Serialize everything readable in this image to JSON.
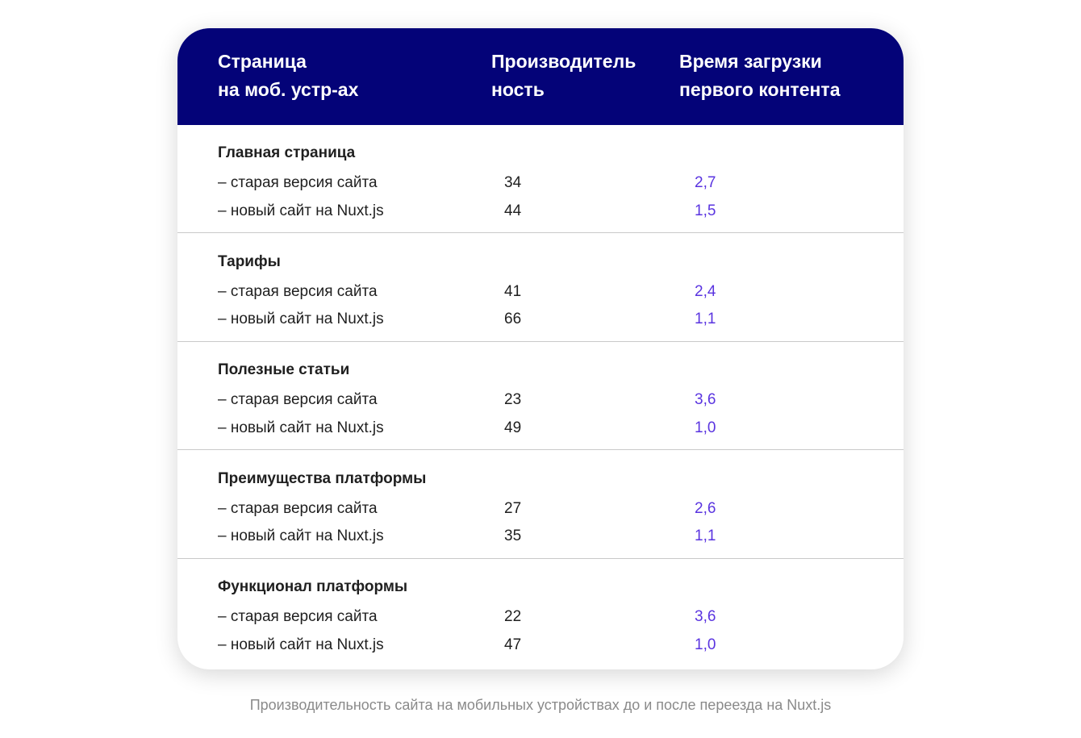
{
  "chart_data": {
    "type": "table",
    "columns": [
      "Страница\nна моб. устр-ах",
      "Производитель\nность",
      "Время загрузки\nпервого контента"
    ],
    "groups": [
      {
        "title": "Главная страница",
        "rows": [
          {
            "label": "– старая версия сайта",
            "performance": "34",
            "fcp": "2,7"
          },
          {
            "label": "– новый сайт на Nuxt.js",
            "performance": "44",
            "fcp": "1,5"
          }
        ]
      },
      {
        "title": "Тарифы",
        "rows": [
          {
            "label": "– старая версия сайта",
            "performance": "41",
            "fcp": "2,4"
          },
          {
            "label": "– новый сайт на Nuxt.js",
            "performance": "66",
            "fcp": "1,1"
          }
        ]
      },
      {
        "title": "Полезные статьи",
        "rows": [
          {
            "label": "– старая версия сайта",
            "performance": "23",
            "fcp": "3,6"
          },
          {
            "label": "– новый сайт на Nuxt.js",
            "performance": "49",
            "fcp": "1,0"
          }
        ]
      },
      {
        "title": "Преимущества платформы",
        "rows": [
          {
            "label": "– старая версия сайта",
            "performance": "27",
            "fcp": "2,6"
          },
          {
            "label": "– новый сайт на Nuxt.js",
            "performance": "35",
            "fcp": "1,1"
          }
        ]
      },
      {
        "title": "Функционал платформы",
        "rows": [
          {
            "label": "– старая версия сайта",
            "performance": "22",
            "fcp": "3,6"
          },
          {
            "label": "– новый сайт на Nuxt.js",
            "performance": "47",
            "fcp": "1,0"
          }
        ]
      }
    ],
    "caption": "Производительность сайта на мобильных устройствах до и после переезда на Nuxt.js"
  },
  "colors": {
    "header_background": "#040378",
    "header_text": "#ffffff",
    "fcp_value": "#5a34e0",
    "caption": "#8a8a8a"
  }
}
